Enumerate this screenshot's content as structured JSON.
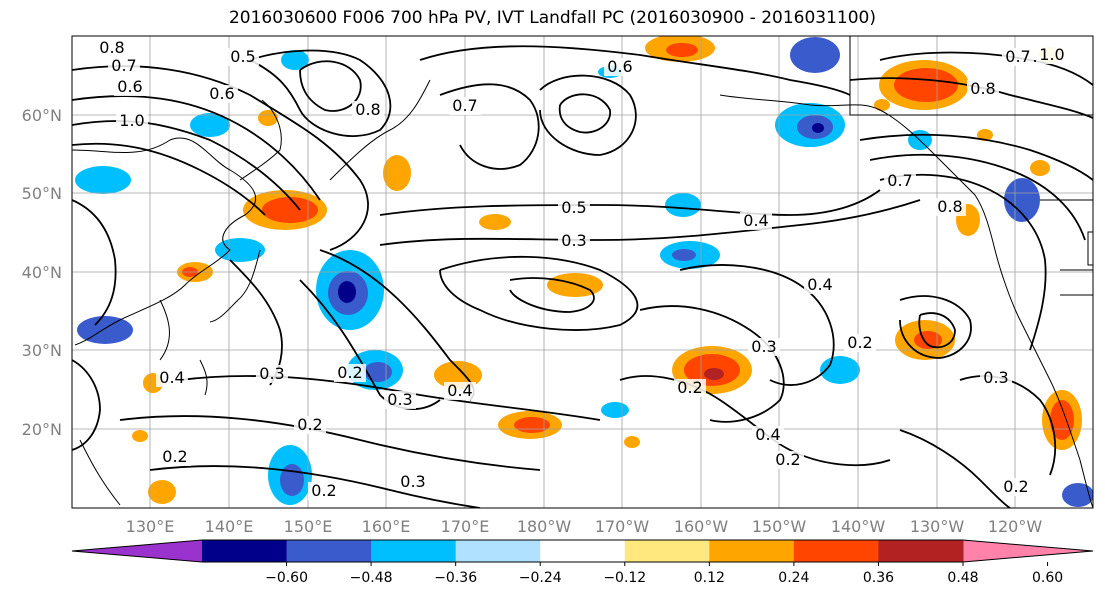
{
  "title": "2016030600 F006 700 hPa PV, IVT Landfall PC (2016030900 - 2016031100)",
  "lat_labels": [
    "60°N",
    "50°N",
    "40°N",
    "30°N",
    "20°N"
  ],
  "lon_labels": [
    "130°E",
    "140°E",
    "150°E",
    "160°E",
    "170°E",
    "180°W",
    "170°W",
    "160°W",
    "150°W",
    "140°W",
    "130°W",
    "120°W"
  ],
  "colorbar": {
    "ticks": [
      "−0.60",
      "−0.48",
      "−0.36",
      "−0.24",
      "−0.12",
      "0.12",
      "0.24",
      "0.36",
      "0.48",
      "0.60"
    ],
    "colors": [
      "#9a32cd",
      "#00008b",
      "#3a5bcc",
      "#00bfff",
      "#b0e2ff",
      "#ffffff",
      "#ffe97f",
      "#ffa500",
      "#ff4500",
      "#b22222",
      "#ff82ab"
    ]
  },
  "contour_labels": [
    "0.8",
    "0.7",
    "0.6",
    "1.0",
    "0.5",
    "0.6",
    "0.7",
    "0.8",
    "0.6",
    "0.5",
    "0.3",
    "0.4",
    "0.4",
    "0.3",
    "0.2",
    "0.3",
    "0.2",
    "0.2",
    "0.4",
    "0.4",
    "0.2",
    "0.3",
    "0.7",
    "0.8",
    "0.7",
    "0.8",
    "1.0",
    "0.2",
    "0.3",
    "0.3",
    "0.2",
    "0.4",
    "0.2",
    "0.2"
  ]
}
